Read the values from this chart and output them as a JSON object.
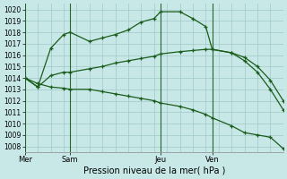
{
  "title": "Pression niveau de la mer( hPa )",
  "bg_color": "#c8e8e8",
  "grid_color": "#a0c8c8",
  "line_color": "#1a5c1a",
  "ylim": [
    1007.5,
    1020.5
  ],
  "yticks": [
    1008,
    1009,
    1010,
    1011,
    1012,
    1013,
    1014,
    1015,
    1016,
    1017,
    1018,
    1019,
    1020
  ],
  "xlim": [
    0,
    20
  ],
  "day_positions": [
    0,
    3.5,
    10.5,
    14.5
  ],
  "day_labels": [
    "Mer",
    "Sam",
    "Jeu",
    "Ven"
  ],
  "vline_positions": [
    0,
    3.5,
    10.5,
    14.5
  ],
  "series": [
    {
      "x": [
        0,
        1,
        2,
        3,
        3.5,
        5,
        6,
        7,
        8,
        9,
        10,
        10.5,
        12,
        13,
        14,
        14.5,
        16,
        17,
        18,
        19,
        20
      ],
      "y": [
        1014.0,
        1013.5,
        1013.2,
        1013.1,
        1013.0,
        1013.0,
        1012.8,
        1012.6,
        1012.4,
        1012.2,
        1012.0,
        1011.8,
        1011.5,
        1011.2,
        1010.8,
        1010.5,
        1009.8,
        1009.2,
        1009.0,
        1008.8,
        1007.8
      ]
    },
    {
      "x": [
        0,
        1,
        2,
        3,
        3.5,
        5,
        6,
        7,
        8,
        9,
        10,
        10.5,
        12,
        13,
        14,
        14.5,
        16,
        17,
        18,
        19,
        20
      ],
      "y": [
        1014.0,
        1013.2,
        1016.6,
        1017.8,
        1018.0,
        1017.2,
        1017.5,
        1017.8,
        1018.2,
        1018.9,
        1019.2,
        1019.8,
        1019.8,
        1019.2,
        1018.5,
        1016.5,
        1016.2,
        1015.5,
        1014.5,
        1013.0,
        1011.2
      ]
    },
    {
      "x": [
        0,
        1,
        2,
        3,
        3.5,
        5,
        6,
        7,
        8,
        9,
        10,
        10.5,
        12,
        13,
        14,
        14.5,
        16,
        17,
        18,
        19,
        20
      ],
      "y": [
        1014.0,
        1013.2,
        1014.2,
        1014.5,
        1014.5,
        1014.8,
        1015.0,
        1015.3,
        1015.5,
        1015.7,
        1015.9,
        1016.1,
        1016.3,
        1016.4,
        1016.5,
        1016.5,
        1016.2,
        1015.8,
        1015.0,
        1013.8,
        1012.0
      ]
    }
  ]
}
